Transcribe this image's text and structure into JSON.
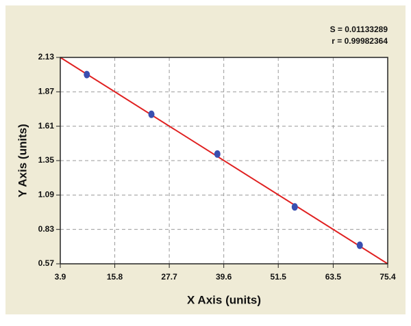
{
  "chart_data": {
    "type": "scatter",
    "annotations": [
      "S = 0.01133289",
      "r = 0.99982364"
    ],
    "x_label": "X Axis (units)",
    "y_label": "Y Axis (units)",
    "x": [
      9.7,
      23.8,
      38.2,
      55.1,
      69.3
    ],
    "values": [
      2.0,
      1.7,
      1.4,
      1.0,
      0.71
    ],
    "color": "#3a4fb0",
    "fit": {
      "x": [
        3.9,
        75.4
      ],
      "values": [
        2.13,
        0.57
      ],
      "color": "#e02020"
    },
    "xlim": [
      3.9,
      75.4
    ],
    "xticks": [
      3.9,
      15.8,
      27.7,
      39.6,
      51.5,
      63.5,
      75.4
    ],
    "ylim": [
      0.57,
      2.13
    ],
    "yticks": [
      0.57,
      0.83,
      1.09,
      1.35,
      1.61,
      1.87,
      2.13
    ],
    "grid": true
  }
}
